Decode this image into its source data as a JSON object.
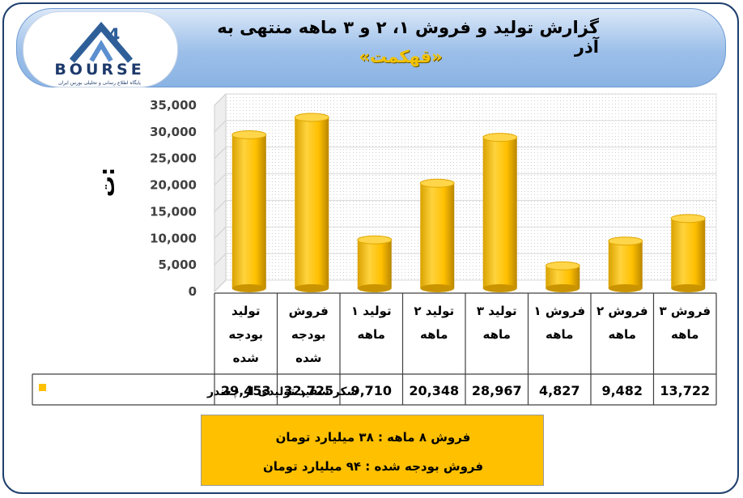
{
  "header": {
    "title": "گزارش تولید و فروش ۱، ۲ و ۳ ماهه منتهی به آذر",
    "subtitle": "«قهکمت»"
  },
  "logo": {
    "text": "BOURSE",
    "tagline": "پایگاه اطلاع رسانی و تحلیلی بورس ایران"
  },
  "chart_data": {
    "type": "bar",
    "title": "",
    "xlabel": "",
    "ylabel": "",
    "unit_label": "ت:",
    "ylim": [
      0,
      35000
    ],
    "yticks": [
      "0",
      "5,000",
      "10,000",
      "15,000",
      "20,000",
      "25,000",
      "30,000",
      "35,000"
    ],
    "categories": [
      [
        "تولید",
        "بودجه",
        "شده"
      ],
      [
        "فروش",
        "بودجه",
        "شده"
      ],
      [
        "تولید ۱",
        "ماهه"
      ],
      [
        "تولید ۲",
        "ماهه"
      ],
      [
        "تولید ۳",
        "ماهه"
      ],
      [
        "فروش ۱",
        "ماهه"
      ],
      [
        "فروش ۲",
        "ماهه"
      ],
      [
        "فروش ۳",
        "ماهه"
      ]
    ],
    "series": [
      {
        "name": "شکر سفید تولیدی از چغندر",
        "values": [
          29453,
          32725,
          9710,
          20348,
          28967,
          4827,
          9482,
          13722
        ],
        "labels": [
          "29,453",
          "32,725",
          "9,710",
          "20,348",
          "28,967",
          "4,827",
          "9,482",
          "13,722"
        ]
      }
    ],
    "grid": true,
    "legend": "bottom-table",
    "colors": {
      "bar": "#ffc000",
      "bar_dark": "#c99400",
      "grid": "#d9d9d9",
      "axis": "#404040"
    }
  },
  "notes": {
    "line1": "فروش ۸ ماهه : ۳۸ میلیارد تومان",
    "line2": "فروش بودجه شده : ۹۴ میلیارد تومان"
  }
}
